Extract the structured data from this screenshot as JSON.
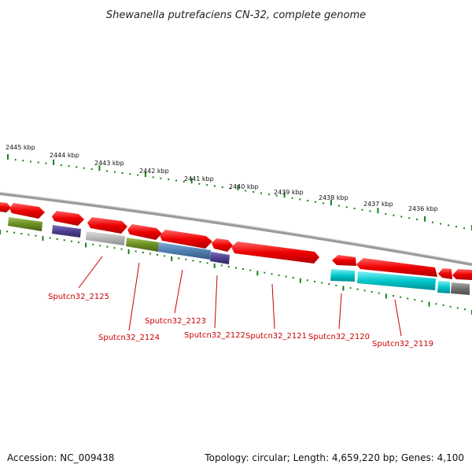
{
  "header": {
    "title": "Shewanella putrefaciens CN-32, complete genome"
  },
  "scale_labels": [
    "2445 kbp",
    "2444 kbp",
    "2443 kbp",
    "2442 kbp",
    "2441 kbp",
    "2440 kbp",
    "2439 kbp",
    "2438 kbp",
    "2437 kbp",
    "2436 kbp"
  ],
  "gene_labels": [
    "Sputcn32_2125",
    "Sputcn32_2124",
    "Sputcn32_2123",
    "Sputcn32_2122",
    "Sputcn32_2121",
    "Sputcn32_2120",
    "Sputcn32_2119"
  ],
  "footer": {
    "accession": "Accession: NC_009438",
    "summary": "Topology: circular; Length: 4,659,220 bp; Genes: 4,100"
  },
  "colors": {
    "cds_red": "#ee0000",
    "olive": "#6b8e23",
    "navy": "#4b3f8f",
    "gray": "#b0b0b0",
    "steel": "#4f7fb0",
    "cyan": "#00c8cc",
    "darkgray": "#707070",
    "tick_green": "#1a7f1a",
    "label_red": "#cc0000",
    "backbone": "#808080"
  }
}
